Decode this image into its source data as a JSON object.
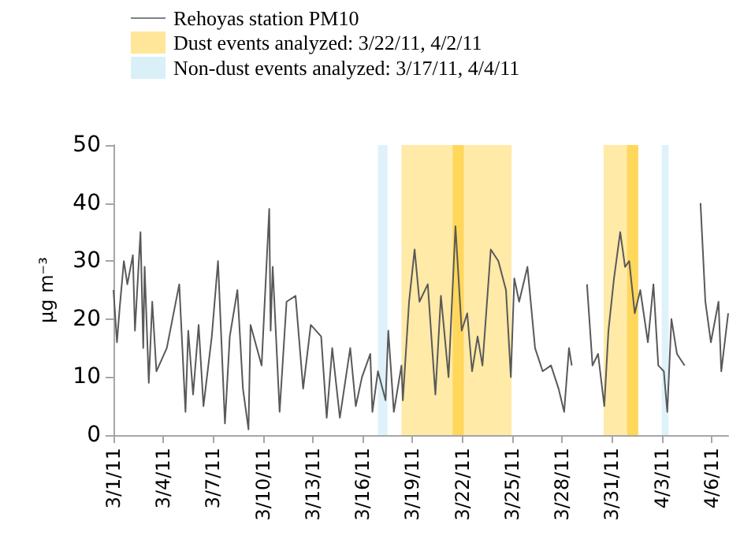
{
  "chart_data": {
    "type": "line",
    "ylabel": "µg m⁻³",
    "x": [
      "--03-01T00:00",
      "--03-01T05:00",
      "--03-01T09:00",
      "--03-01T15:00",
      "--03-01T20:00",
      "--03-02T04:00",
      "--03-02T07:00",
      "--03-02T15:00",
      "--03-02T19:00",
      "--03-02T21:00",
      "--03-03T03:00",
      "--03-03T08:00",
      "--03-03T14:00",
      "--03-04T05:00",
      "--03-04T23:00",
      "--03-05T08:00",
      "--03-05T12:00",
      "--03-05T19:00",
      "--03-06T03:00",
      "--03-06T10:00",
      "--03-06T22:00",
      "--03-07T07:00",
      "--03-07T17:00",
      "--03-08T00:00",
      "--03-08T11:00",
      "--03-08T19:00",
      "--03-09T03:00",
      "--03-09T06:00",
      "--03-09T22:00",
      "--03-10T09:00",
      "--03-10T11:00",
      "--03-10T14:00",
      "--03-11T00:00",
      "--03-11T10:00",
      "--03-11T23:00",
      "--03-12T10:00",
      "--03-12T21:00",
      "--03-13T12:00",
      "--03-13T20:00",
      "--03-14T04:00",
      "--03-14T15:00",
      "--03-15T06:00",
      "--03-15T14:00",
      "--03-15T23:00",
      "--03-16T11:00",
      "--03-16T14:00",
      "--03-16T22:00",
      "--03-17T09:00",
      "--03-17T13:00",
      "--03-17T21:00",
      "--03-18T08:00",
      "--03-18T10:00",
      "--03-18T19:00",
      "--03-19T03:00",
      "--03-19T10:00",
      "--03-19T22:00",
      "--03-20T09:00",
      "--03-20T17:00",
      "--03-21T04:00",
      "--03-21T14:00",
      "--03-21T23:00",
      "--03-22T07:00",
      "--03-22T14:00",
      "--03-22T22:00",
      "--03-23T05:00",
      "--03-23T17:00",
      "--03-24T04:00",
      "--03-24T15:00",
      "--03-24T22:00",
      "--03-25T03:00",
      "--03-25T10:00",
      "--03-25T22:00",
      "--03-26T09:00",
      "--03-26T20:00",
      "--03-27T08:00",
      "--03-27T19:00",
      "--03-28T03:00",
      "--03-28T10:00",
      "--03-28T14:00",
      "--03-28T20:00",
      "--03-29T12:00",
      "--03-29T20:00",
      "--03-30T04:00",
      "--03-30T13:00",
      "--03-30T19:00",
      "--03-31T03:00",
      "--03-31T12:00",
      "--03-31T19:00",
      "--04-01T01:00",
      "--04-01T09:00",
      "--04-01T17:00",
      "--04-02T04:00",
      "--04-02T12:00",
      "--04-02T19:00",
      "--04-03T03:00",
      "--04-03T08:00",
      "--04-03T14:00",
      "--04-03T22:00",
      "--04-04T09:00",
      "--04-04T20:00",
      "--04-05T08:00",
      "--04-05T15:00",
      "--04-05T23:00",
      "--04-06T10:00",
      "--04-06T14:00",
      "--04-07T00:00"
    ],
    "series": [
      {
        "name": "Rehoyas station PM10",
        "color": "#595959",
        "values": [
          25,
          16,
          22,
          30,
          26,
          31,
          18,
          35,
          15,
          29,
          9,
          23,
          11,
          15,
          26,
          4,
          18,
          7,
          19,
          5,
          17,
          30,
          2,
          17,
          25,
          8,
          1,
          19,
          12,
          39,
          18,
          29,
          4,
          23,
          24,
          8,
          19,
          17,
          3,
          15,
          3,
          15,
          5,
          10,
          14,
          4,
          11,
          6,
          18,
          4,
          12,
          6,
          23,
          32,
          23,
          26,
          7,
          24,
          10,
          36,
          18,
          21,
          11,
          17,
          12,
          32,
          30,
          25,
          10,
          27,
          23,
          29,
          15,
          11,
          12,
          8,
          4,
          15,
          12,
          null,
          26,
          12,
          14,
          5,
          18,
          27,
          35,
          29,
          30,
          21,
          25,
          16,
          26,
          12,
          11,
          4,
          20,
          14,
          12,
          null,
          40,
          23,
          16,
          23,
          11,
          21
        ]
      }
    ],
    "xlim": [
      "--03-01",
      "--04-07"
    ],
    "xticks": [
      {
        "value": "--03-01",
        "label": "3/1/11"
      },
      {
        "value": "--03-04",
        "label": "3/4/11"
      },
      {
        "value": "--03-07",
        "label": "3/7/11"
      },
      {
        "value": "--03-10",
        "label": "3/10/11"
      },
      {
        "value": "--03-13",
        "label": "3/13/11"
      },
      {
        "value": "--03-16",
        "label": "3/16/11"
      },
      {
        "value": "--03-19",
        "label": "3/19/11"
      },
      {
        "value": "--03-22",
        "label": "3/22/11"
      },
      {
        "value": "--03-25",
        "label": "3/25/11"
      },
      {
        "value": "--03-28",
        "label": "3/28/11"
      },
      {
        "value": "--03-31",
        "label": "3/31/11"
      },
      {
        "value": "--04-03",
        "label": "4/3/11"
      },
      {
        "value": "--04-06",
        "label": "4/6/11"
      }
    ],
    "ylim": [
      0,
      50
    ],
    "yticks": [
      0,
      10,
      20,
      30,
      40,
      50
    ],
    "bands": [
      {
        "axis": "x",
        "from": "--03-18T08:00",
        "to": "--03-24T23:00",
        "label": "Dust events analyzed: 3/22/11, 4/2/11",
        "color": "#ffe699"
      },
      {
        "axis": "x",
        "from": "--03-30T12:00",
        "to": "--04-01T14:00",
        "color": "#ffe699"
      },
      {
        "axis": "x",
        "from": "--03-21T10:00",
        "to": "--03-22T02:00",
        "color": "#ffd34d"
      },
      {
        "axis": "x",
        "from": "--03-31T22:00",
        "to": "--04-01T14:00",
        "color": "#ffd34d"
      },
      {
        "axis": "x",
        "from": "--03-16T22:00",
        "to": "--03-17T12:00",
        "label": "Non-dust events analyzed: 3/17/11, 4/4/11",
        "color": "#daf0f8"
      },
      {
        "axis": "x",
        "from": "--04-03T00:00",
        "to": "--04-03T10:00",
        "color": "#daf0f8"
      }
    ],
    "grid": false,
    "legend": "top left",
    "marker": "none",
    "line_style": "solid"
  }
}
